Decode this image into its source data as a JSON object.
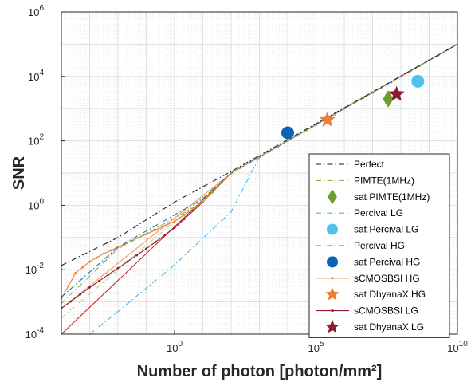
{
  "chart_data": {
    "type": "line",
    "title": "",
    "xlabel": "Number of photon [photon/mm²]",
    "ylabel": "SNR",
    "xscale": "log",
    "yscale": "log",
    "xlim_exp": [
      -4,
      10
    ],
    "ylim_exp": [
      -4,
      6
    ],
    "x_ticks": [
      {
        "base": "10",
        "exp": "0",
        "v": 0
      },
      {
        "base": "10",
        "exp": "5",
        "v": 5
      },
      {
        "base": "10",
        "exp": "10",
        "v": 10
      }
    ],
    "y_ticks": [
      {
        "base": "10",
        "exp": "-4",
        "v": -4
      },
      {
        "base": "10",
        "exp": "-2",
        "v": -2
      },
      {
        "base": "10",
        "exp": "0",
        "v": 0
      },
      {
        "base": "10",
        "exp": "2",
        "v": 2
      },
      {
        "base": "10",
        "exp": "4",
        "v": 4
      },
      {
        "base": "10",
        "exp": "6",
        "v": 6
      }
    ],
    "grid": true,
    "legend_position": "lower-right",
    "series": [
      {
        "name": "Perfect",
        "kind": "line",
        "color": "#1f1f1f",
        "dash": "7,3,1.5,3",
        "log10_x": [
          -4,
          -2,
          0,
          2,
          10
        ],
        "log10_y": [
          -1.87,
          -1.0,
          0.1,
          1.05,
          5.0
        ]
      },
      {
        "name": "PIMTE(1MHz)",
        "kind": "line",
        "color": "#8cb33c",
        "dash": "7,3,1.5,3",
        "log10_x": [
          -4,
          -2,
          0,
          1,
          2,
          3,
          10
        ],
        "log10_y": [
          -3.05,
          -1.35,
          -0.4,
          0.1,
          1.0,
          1.5,
          5.0
        ]
      },
      {
        "name": "sat PIMTE(1MHz)",
        "kind": "marker",
        "marker": "diamond",
        "color": "#6f9f2a",
        "log10_x": [
          7.55
        ],
        "log10_y": [
          3.3
        ]
      },
      {
        "name": "Percival LG",
        "kind": "line",
        "color": "#39b9ec",
        "dash": "7,3,1.5,3",
        "log10_x": [
          -3,
          -2,
          0,
          2,
          3,
          10
        ],
        "log10_y": [
          -4.0,
          -3.3,
          -1.85,
          -0.2,
          1.5,
          5.0
        ]
      },
      {
        "name": "sat Percival LG",
        "kind": "marker",
        "marker": "circle",
        "color": "#4fc3ee",
        "log10_x": [
          8.6
        ],
        "log10_y": [
          3.85
        ]
      },
      {
        "name": "Percival HG",
        "kind": "line",
        "color": "#1878b8",
        "dash": "7,3,1.5,3",
        "log10_x": [
          -4,
          -2,
          0,
          1,
          2,
          10
        ],
        "log10_y": [
          -2.85,
          -1.3,
          -0.3,
          0.2,
          1.0,
          5.0
        ]
      },
      {
        "name": "sat Percival HG",
        "kind": "marker",
        "marker": "circle",
        "color": "#0c63b4",
        "log10_x": [
          4.0
        ],
        "log10_y": [
          2.25
        ]
      },
      {
        "name": "sCMOSBSI HG",
        "kind": "dotline",
        "color": "#f07f35",
        "log10_x": [
          -4,
          -3.5,
          -3,
          -2.5,
          -2,
          -1.5,
          -1,
          0,
          1,
          2,
          10
        ],
        "log10_y": [
          -2.9,
          -2.1,
          -1.75,
          -1.5,
          -1.3,
          -1.1,
          -0.9,
          -0.5,
          0.1,
          1.0,
          5.0
        ]
      },
      {
        "name": "sat DhyanaX HG",
        "kind": "marker",
        "marker": "star",
        "color": "#f07f35",
        "log10_x": [
          5.4
        ],
        "log10_y": [
          2.65
        ]
      },
      {
        "name": "sCMOSBSI LG",
        "kind": "dotline",
        "color": "#8e1c2f",
        "log10_x": [
          -4,
          -3,
          -2,
          -1,
          0,
          1,
          2,
          10
        ],
        "log10_y": [
          -3.2,
          -2.55,
          -1.95,
          -1.35,
          -0.7,
          0.1,
          1.0,
          5.0
        ]
      },
      {
        "name": "sat DhyanaX LG",
        "kind": "marker",
        "marker": "star",
        "color": "#8e1c2f",
        "log10_x": [
          7.85
        ],
        "log10_y": [
          3.45
        ]
      },
      {
        "name": "",
        "kind": "line",
        "color": "#c82828",
        "dash": "",
        "log10_x": [
          -4,
          2
        ],
        "log10_y": [
          -4.0,
          1.0
        ]
      },
      {
        "name": "",
        "kind": "line",
        "color": "#f0a060",
        "dash": "",
        "log10_x": [
          -4,
          2
        ],
        "log10_y": [
          -3.2,
          1.0
        ]
      },
      {
        "name": "",
        "kind": "line",
        "color": "#b9d48a",
        "dash": "7,3,1.5,3",
        "log10_x": [
          -4,
          2
        ],
        "log10_y": [
          -3.5,
          1.0
        ]
      }
    ]
  }
}
